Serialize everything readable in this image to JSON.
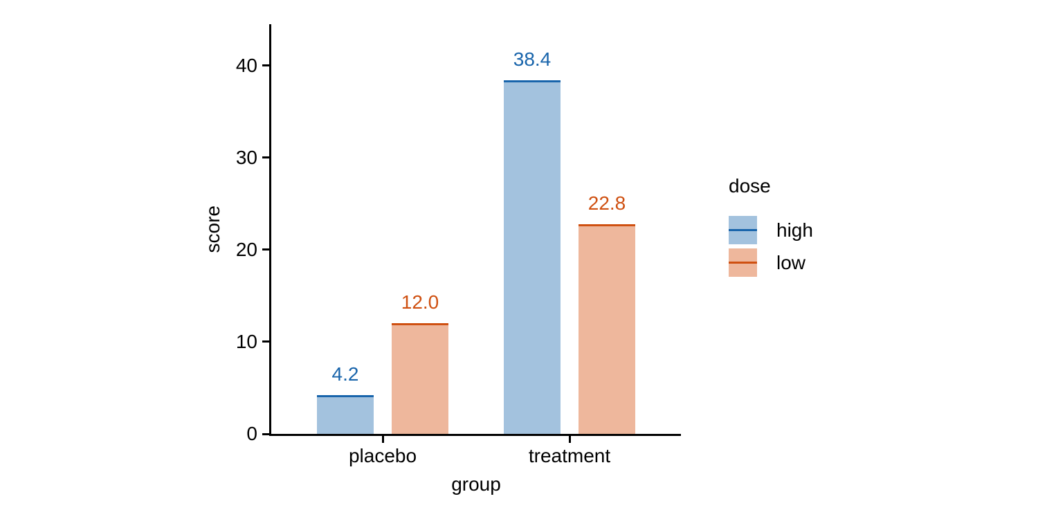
{
  "chart_data": {
    "type": "bar",
    "title": "",
    "xlabel": "group",
    "ylabel": "score",
    "categories": [
      "placebo",
      "treatment"
    ],
    "series": [
      {
        "name": "high",
        "values": [
          4.2,
          38.4
        ],
        "value_labels": [
          "4.2",
          "38.4"
        ],
        "edge_color": "#1864ab",
        "fill_color": "#a3c2de",
        "label_color": "#1864ab"
      },
      {
        "name": "low",
        "values": [
          12.0,
          22.8
        ],
        "value_labels": [
          "12.0",
          "22.8"
        ],
        "edge_color": "#cf5011",
        "fill_color": "#eeb79c",
        "label_color": "#cf5011"
      }
    ],
    "yticks": [
      0,
      10,
      20,
      30,
      40
    ],
    "ylim": [
      0,
      44.5
    ],
    "grid": false,
    "legend": {
      "title": "dose",
      "position": "right",
      "entries": [
        "high",
        "low"
      ]
    },
    "axis_color": "#000000",
    "background_color": "#ffffff"
  }
}
